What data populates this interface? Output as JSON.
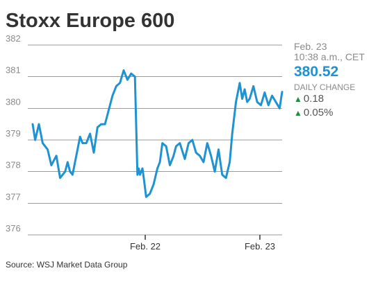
{
  "chart_data": {
    "type": "line",
    "title": "Stoxx Europe 600",
    "ylim": [
      376,
      382
    ],
    "yticks": [
      "382",
      "381",
      "380",
      "379",
      "378",
      "377",
      "376"
    ],
    "xticks": [
      "Feb. 22",
      "Feb. 23"
    ],
    "grid": "horizontal",
    "series": [
      {
        "color": "#1f93d1",
        "x": [
          0.0,
          0.01,
          0.025,
          0.04,
          0.06,
          0.075,
          0.095,
          0.11,
          0.13,
          0.14,
          0.15,
          0.16,
          0.175,
          0.19,
          0.2,
          0.215,
          0.23,
          0.245,
          0.26,
          0.275,
          0.29,
          0.3,
          0.31,
          0.32,
          0.335,
          0.35,
          0.365,
          0.38,
          0.395,
          0.41,
          0.42,
          0.425,
          0.43,
          0.44,
          0.447,
          0.455,
          0.47,
          0.485,
          0.5,
          0.51,
          0.52,
          0.535,
          0.55,
          0.565,
          0.575,
          0.59,
          0.61,
          0.625,
          0.64,
          0.655,
          0.67,
          0.685,
          0.7,
          0.715,
          0.73,
          0.745,
          0.76,
          0.775,
          0.79,
          0.8,
          0.815,
          0.83,
          0.84,
          0.85,
          0.86,
          0.87,
          0.885,
          0.9,
          0.915,
          0.93,
          0.945,
          0.96,
          0.975,
          0.99,
          1.0
        ],
        "values": [
          379.5,
          379.0,
          379.5,
          378.9,
          378.7,
          378.2,
          378.5,
          377.8,
          378.0,
          378.3,
          378.0,
          377.9,
          378.5,
          379.1,
          378.9,
          378.9,
          379.2,
          378.6,
          379.4,
          379.5,
          379.5,
          379.8,
          380.1,
          380.4,
          380.7,
          380.8,
          381.2,
          380.9,
          381.1,
          381.0,
          377.9,
          378.1,
          377.9,
          378.1,
          377.7,
          377.2,
          377.3,
          377.6,
          378.1,
          378.3,
          378.9,
          378.8,
          378.2,
          378.5,
          378.8,
          378.9,
          378.4,
          378.9,
          379.0,
          378.6,
          378.5,
          378.3,
          378.9,
          378.5,
          378.0,
          378.7,
          377.9,
          377.8,
          378.3,
          379.2,
          380.2,
          380.8,
          380.3,
          380.6,
          380.2,
          380.3,
          380.7,
          380.2,
          380.1,
          380.5,
          380.1,
          380.4,
          380.2,
          380.0,
          380.52
        ]
      }
    ]
  },
  "info": {
    "date": "Feb. 23",
    "time": "10:38 a.m., CET",
    "price": "380.52",
    "change_label": "DAILY CHANGE",
    "change_abs": "0.18",
    "change_pct": "0.05%",
    "up_arrow": "▲",
    "up_color": "#1a8f44"
  },
  "source": "Source: WSJ Market Data Group"
}
